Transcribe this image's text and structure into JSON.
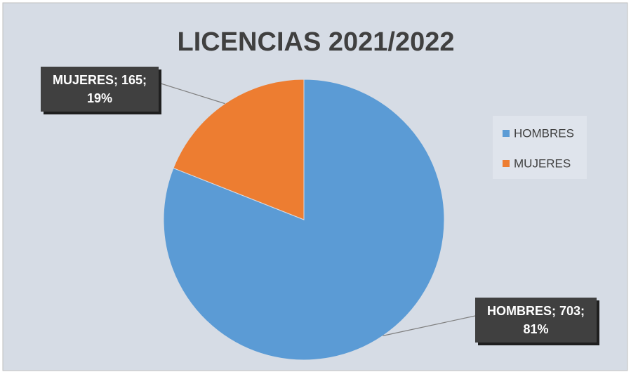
{
  "chart_data": {
    "type": "pie",
    "title": "LICENCIAS 2021/2022",
    "categories": [
      "HOMBRES",
      "MUJERES"
    ],
    "values": [
      703,
      165
    ],
    "value_labels": [
      "HOMBRES; 703; 81%",
      "MUJERES; 165; 19%"
    ],
    "colors": [
      "#5b9bd5",
      "#ed7d31"
    ],
    "legend": "right"
  }
}
